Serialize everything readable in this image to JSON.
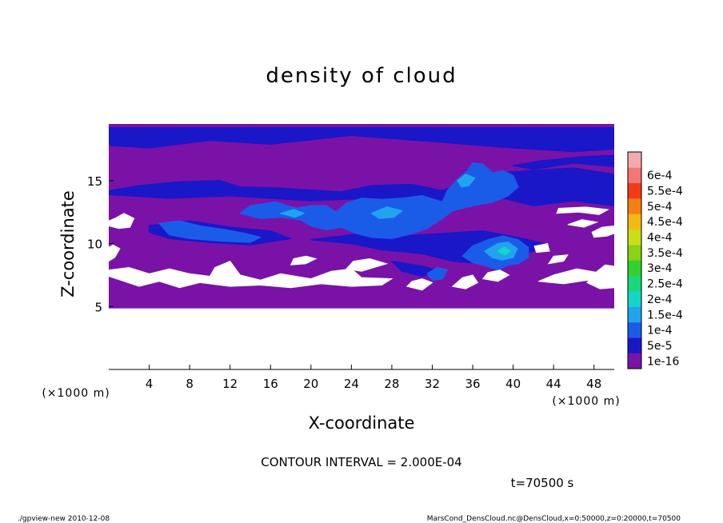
{
  "chart_data": {
    "type": "heatmap",
    "title": "density of cloud",
    "xlabel": "X-coordinate",
    "ylabel": "Z-coordinate",
    "x_unit": "(×1000 m)",
    "y_unit": "(×1000 m)",
    "xlim": [
      0,
      50
    ],
    "ylim": [
      0,
      19.5
    ],
    "x_ticks": [
      4,
      8,
      12,
      16,
      20,
      24,
      28,
      32,
      36,
      40,
      44,
      48
    ],
    "y_ticks": [
      5,
      10,
      15
    ],
    "colorbar": {
      "labels": [
        "1e-16",
        "5e-5",
        "1e-4",
        "1.5e-4",
        "2e-4",
        "2.5e-4",
        "3e-4",
        "3.5e-4",
        "4e-4",
        "4.5e-4",
        "5e-4",
        "5.5e-4",
        "6e-4"
      ],
      "colors": [
        "#7a12a8",
        "#1a17c8",
        "#1a5ce8",
        "#21a3f0",
        "#12d6c8",
        "#15d97a",
        "#2fd22f",
        "#8ad214",
        "#c9de14",
        "#f5b812",
        "#f57f12",
        "#f23b16",
        "#f37676",
        "#f4aaaa"
      ]
    },
    "regions": [
      {
        "level": 1,
        "polygons": [
          [
            [
              0,
              4.9
            ],
            [
              50,
              4.9
            ],
            [
              50,
              19.5
            ],
            [
              0,
              19.5
            ]
          ]
        ]
      },
      {
        "level": 2,
        "polygons": [
          [
            [
              0,
              17.8
            ],
            [
              4,
              17.6
            ],
            [
              10,
              18.2
            ],
            [
              16,
              17.9
            ],
            [
              24,
              18.6
            ],
            [
              32,
              18.1
            ],
            [
              40,
              17.6
            ],
            [
              46,
              17.3
            ],
            [
              50,
              17.5
            ],
            [
              50,
              19.2
            ],
            [
              0,
              19.2
            ]
          ],
          [
            [
              0,
              14.2
            ],
            [
              3,
              14.6
            ],
            [
              7,
              14.9
            ],
            [
              11,
              15.0
            ],
            [
              13,
              14.5
            ],
            [
              17,
              14.4
            ],
            [
              23,
              14.1
            ],
            [
              26,
              14.6
            ],
            [
              30,
              14.7
            ],
            [
              33,
              14.2
            ],
            [
              35,
              14.8
            ],
            [
              38,
              15.6
            ],
            [
              42,
              15.8
            ],
            [
              46,
              16.0
            ],
            [
              50,
              15.5
            ],
            [
              50,
              13.0
            ],
            [
              46,
              13.4
            ],
            [
              42,
              13.0
            ],
            [
              38,
              13.8
            ],
            [
              33,
              12.9
            ],
            [
              26,
              13.6
            ],
            [
              20,
              13.4
            ],
            [
              12,
              13.8
            ],
            [
              6,
              13.6
            ],
            [
              0,
              13.9
            ]
          ],
          [
            [
              40,
              16.2
            ],
            [
              43,
              16.6
            ],
            [
              47,
              16.9
            ],
            [
              50,
              17.0
            ],
            [
              50,
              16.1
            ],
            [
              46,
              16.4
            ],
            [
              42,
              15.9
            ]
          ],
          [
            [
              20,
              10.3
            ],
            [
              24,
              10.0
            ],
            [
              27,
              9.5
            ],
            [
              31,
              9.2
            ],
            [
              34,
              8.6
            ],
            [
              37,
              8.4
            ],
            [
              40,
              8.9
            ],
            [
              42,
              9.4
            ],
            [
              43,
              10.0
            ],
            [
              41,
              10.4
            ],
            [
              37,
              11.0
            ],
            [
              33,
              10.8
            ],
            [
              29,
              10.6
            ],
            [
              25,
              10.8
            ]
          ],
          [
            [
              4,
              11.4
            ],
            [
              8,
              11.8
            ],
            [
              12,
              11.3
            ],
            [
              16,
              11.0
            ],
            [
              18,
              10.4
            ],
            [
              14,
              9.9
            ],
            [
              10,
              10.1
            ],
            [
              6,
              10.4
            ],
            [
              4,
              10.9
            ]
          ],
          [
            [
              28,
              8.6
            ],
            [
              31,
              8.2
            ],
            [
              33,
              7.8
            ],
            [
              31,
              7.4
            ],
            [
              29,
              7.8
            ]
          ]
        ]
      },
      {
        "level": 3,
        "polygons": [
          [
            [
              13,
              12.4
            ],
            [
              14,
              13.0
            ],
            [
              16.5,
              13.3
            ],
            [
              18.5,
              12.8
            ],
            [
              20,
              13.0
            ],
            [
              21.5,
              13.0
            ],
            [
              22.5,
              12.5
            ],
            [
              23.5,
              13.2
            ],
            [
              25,
              13.6
            ],
            [
              27,
              13.5
            ],
            [
              29,
              13.6
            ],
            [
              31,
              13.8
            ],
            [
              33,
              13.3
            ],
            [
              33.5,
              14.2
            ],
            [
              34.5,
              15.1
            ],
            [
              35.5,
              15.8
            ],
            [
              36,
              16.4
            ],
            [
              37,
              16.3
            ],
            [
              38,
              15.6
            ],
            [
              39,
              15.8
            ],
            [
              40,
              15.4
            ],
            [
              40.5,
              14.5
            ],
            [
              39.5,
              13.8
            ],
            [
              38,
              13.3
            ],
            [
              36,
              13.0
            ],
            [
              34,
              12.6
            ],
            [
              33,
              12.0
            ],
            [
              31.5,
              11.2
            ],
            [
              30,
              10.8
            ],
            [
              28,
              10.4
            ],
            [
              26,
              10.5
            ],
            [
              24.5,
              10.8
            ],
            [
              23,
              11.3
            ],
            [
              21.5,
              11.1
            ],
            [
              20,
              11.4
            ],
            [
              19,
              11.9
            ],
            [
              17,
              12.1
            ],
            [
              15,
              12.0
            ]
          ],
          [
            [
              5,
              11.6
            ],
            [
              7,
              11.8
            ],
            [
              9,
              11.4
            ],
            [
              11.5,
              11.1
            ],
            [
              13.5,
              10.8
            ],
            [
              15,
              10.5
            ],
            [
              14,
              10.1
            ],
            [
              11,
              10.2
            ],
            [
              8,
              10.4
            ],
            [
              6,
              10.7
            ]
          ],
          [
            [
              35,
              9.0
            ],
            [
              36,
              9.8
            ],
            [
              37.5,
              10.3
            ],
            [
              39,
              10.6
            ],
            [
              40.5,
              10.3
            ],
            [
              41.5,
              9.7
            ],
            [
              41.5,
              8.9
            ],
            [
              40.5,
              8.4
            ],
            [
              39.5,
              8.3
            ],
            [
              38.5,
              7.9
            ],
            [
              37.5,
              8.2
            ],
            [
              36,
              8.5
            ]
          ],
          [
            [
              31.5,
              7.6
            ],
            [
              32.5,
              8.1
            ],
            [
              33.5,
              7.9
            ],
            [
              33,
              7.2
            ],
            [
              32,
              7.1
            ]
          ]
        ]
      },
      {
        "level": 4,
        "polygons": [
          [
            [
              37.2,
              9.4
            ],
            [
              38.5,
              10.0
            ],
            [
              39.5,
              10.1
            ],
            [
              40.4,
              9.6
            ],
            [
              40.0,
              8.9
            ],
            [
              38.9,
              8.7
            ],
            [
              37.9,
              8.9
            ]
          ],
          [
            [
              34.5,
              15.0
            ],
            [
              35.3,
              15.5
            ],
            [
              36.2,
              15.2
            ],
            [
              35.6,
              14.6
            ],
            [
              34.9,
              14.5
            ]
          ],
          [
            [
              26,
              12.4
            ],
            [
              27.5,
              12.9
            ],
            [
              29,
              12.6
            ],
            [
              28.2,
              12.1
            ],
            [
              26.8,
              12.0
            ]
          ],
          [
            [
              17,
              12.4
            ],
            [
              18.3,
              12.7
            ],
            [
              19.3,
              12.4
            ],
            [
              18.4,
              12.1
            ]
          ]
        ]
      },
      {
        "level": 5,
        "polygons": [
          [
            [
              38.5,
              9.4
            ],
            [
              39.1,
              9.7
            ],
            [
              39.7,
              9.4
            ],
            [
              39.2,
              9.1
            ]
          ]
        ]
      }
    ],
    "clear_regions": [
      [
        [
          0,
          7.4
        ],
        [
          1.5,
          7.0
        ],
        [
          3,
          6.6
        ],
        [
          5,
          7.0
        ],
        [
          7,
          6.5
        ],
        [
          9,
          6.9
        ],
        [
          12,
          6.6
        ],
        [
          15,
          6.7
        ],
        [
          18,
          6.5
        ],
        [
          21,
          6.8
        ],
        [
          24,
          6.6
        ],
        [
          27,
          6.7
        ],
        [
          28,
          7.2
        ],
        [
          25,
          7.3
        ],
        [
          24,
          8.0
        ],
        [
          22,
          7.8
        ],
        [
          20,
          7.2
        ],
        [
          17,
          7.6
        ],
        [
          15,
          7.1
        ],
        [
          13,
          7.5
        ],
        [
          12,
          8.6
        ],
        [
          10.5,
          8.1
        ],
        [
          10,
          7.4
        ],
        [
          8,
          7.6
        ],
        [
          6,
          8.0
        ],
        [
          4,
          7.6
        ],
        [
          2,
          8.1
        ],
        [
          0,
          7.9
        ]
      ],
      [
        [
          0,
          8.6
        ],
        [
          0.6,
          8.9
        ],
        [
          1.1,
          9.6
        ],
        [
          0.4,
          9.9
        ],
        [
          0,
          9.7
        ]
      ],
      [
        [
          0,
          11.8
        ],
        [
          0.6,
          12.0
        ],
        [
          1.5,
          12.4
        ],
        [
          2.5,
          12.0
        ],
        [
          2.1,
          11.3
        ],
        [
          1.0,
          11.2
        ],
        [
          0,
          11.4
        ]
      ],
      [
        [
          18,
          8.3
        ],
        [
          19.5,
          8.4
        ],
        [
          20.5,
          8.8
        ],
        [
          19.5,
          9.0
        ],
        [
          18.3,
          8.8
        ]
      ],
      [
        [
          23.5,
          8.0
        ],
        [
          25,
          7.8
        ],
        [
          27.5,
          8.4
        ],
        [
          25.8,
          8.8
        ],
        [
          24.2,
          8.6
        ]
      ],
      [
        [
          29.5,
          6.6
        ],
        [
          31,
          6.3
        ],
        [
          32,
          6.9
        ],
        [
          31,
          7.2
        ],
        [
          30,
          7.0
        ]
      ],
      [
        [
          34,
          6.6
        ],
        [
          35.3,
          6.4
        ],
        [
          36.5,
          6.9
        ],
        [
          36,
          7.5
        ],
        [
          35,
          7.3
        ]
      ],
      [
        [
          37,
          7.2
        ],
        [
          38.5,
          7.0
        ],
        [
          39.6,
          7.5
        ],
        [
          38.7,
          7.9
        ],
        [
          37.5,
          7.7
        ]
      ],
      [
        [
          42.5,
          7.0
        ],
        [
          45,
          6.8
        ],
        [
          47.5,
          7.1
        ],
        [
          48.4,
          7.7
        ],
        [
          46.3,
          8.0
        ],
        [
          44,
          7.5
        ]
      ],
      [
        [
          47.3,
          6.9
        ],
        [
          48.6,
          6.4
        ],
        [
          50,
          6.5
        ],
        [
          50,
          8.2
        ],
        [
          49.1,
          8.3
        ],
        [
          48.0,
          7.6
        ]
      ],
      [
        [
          43.5,
          8.4
        ],
        [
          45,
          8.6
        ],
        [
          45.4,
          9.1
        ],
        [
          44,
          9.0
        ]
      ],
      [
        [
          42.3,
          9.3
        ],
        [
          43.6,
          9.4
        ],
        [
          43.4,
          10.0
        ],
        [
          42.1,
          9.8
        ]
      ],
      [
        [
          48,
          10.5
        ],
        [
          49.3,
          10.6
        ],
        [
          50,
          10.8
        ],
        [
          50,
          11.4
        ],
        [
          48.8,
          11.3
        ],
        [
          47.8,
          10.9
        ]
      ],
      [
        [
          45.4,
          11.5
        ],
        [
          47.0,
          11.3
        ],
        [
          48.3,
          11.7
        ],
        [
          46.8,
          11.9
        ]
      ],
      [
        [
          44.3,
          12.4
        ],
        [
          46.5,
          12.5
        ],
        [
          48.5,
          12.3
        ],
        [
          49.4,
          12.7
        ],
        [
          47.2,
          12.9
        ],
        [
          44.5,
          12.8
        ]
      ]
    ]
  },
  "contour_interval": "CONTOUR INTERVAL = 2.000E-04",
  "time_label": "t=70500 s",
  "footer": {
    "left": "./gpview-new  2010-12-08",
    "right": "MarsCond_DensCloud.nc@DensCloud,x=0:50000,z=0:20000,t=70500"
  }
}
